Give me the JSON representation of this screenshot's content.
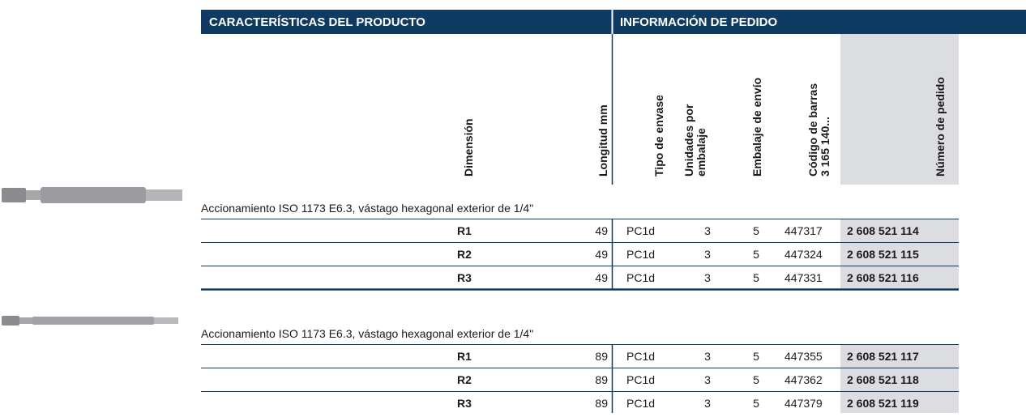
{
  "header": {
    "sections": [
      "CARACTERÍSTICAS DEL PRODUCTO",
      "INFORMACIÓN DE PEDIDO"
    ]
  },
  "table": {
    "columns": [
      [
        "Dimensión"
      ],
      [
        "Longitud mm"
      ],
      [
        "Tipo de envase"
      ],
      [
        "Unidades por",
        "embalaje"
      ],
      [
        "Embalaje de envío"
      ],
      [
        "Código de barras",
        "3 165 140..."
      ],
      [
        "Número de pedido"
      ]
    ],
    "groups": [
      {
        "caption": "Accionamiento ISO 1173 E6.3, vástago hexagonal exterior de 1/4\"",
        "rows": [
          [
            "R1",
            "49",
            "PC1d",
            "3",
            "5",
            "447317",
            "2 608 521 114"
          ],
          [
            "R2",
            "49",
            "PC1d",
            "3",
            "5",
            "447324",
            "2 608 521 115"
          ],
          [
            "R3",
            "49",
            "PC1d",
            "3",
            "5",
            "447331",
            "2 608 521 116"
          ]
        ]
      },
      {
        "caption": "Accionamiento ISO 1173 E6.3, vástago hexagonal exterior de 1/4\"",
        "rows": [
          [
            "R1",
            "89",
            "PC1d",
            "3",
            "5",
            "447355",
            "2 608 521 117"
          ],
          [
            "R2",
            "89",
            "PC1d",
            "3",
            "5",
            "447362",
            "2 608 521 118"
          ],
          [
            "R3",
            "89",
            "PC1d",
            "3",
            "5",
            "447379",
            "2 608 521 119"
          ]
        ]
      }
    ]
  }
}
